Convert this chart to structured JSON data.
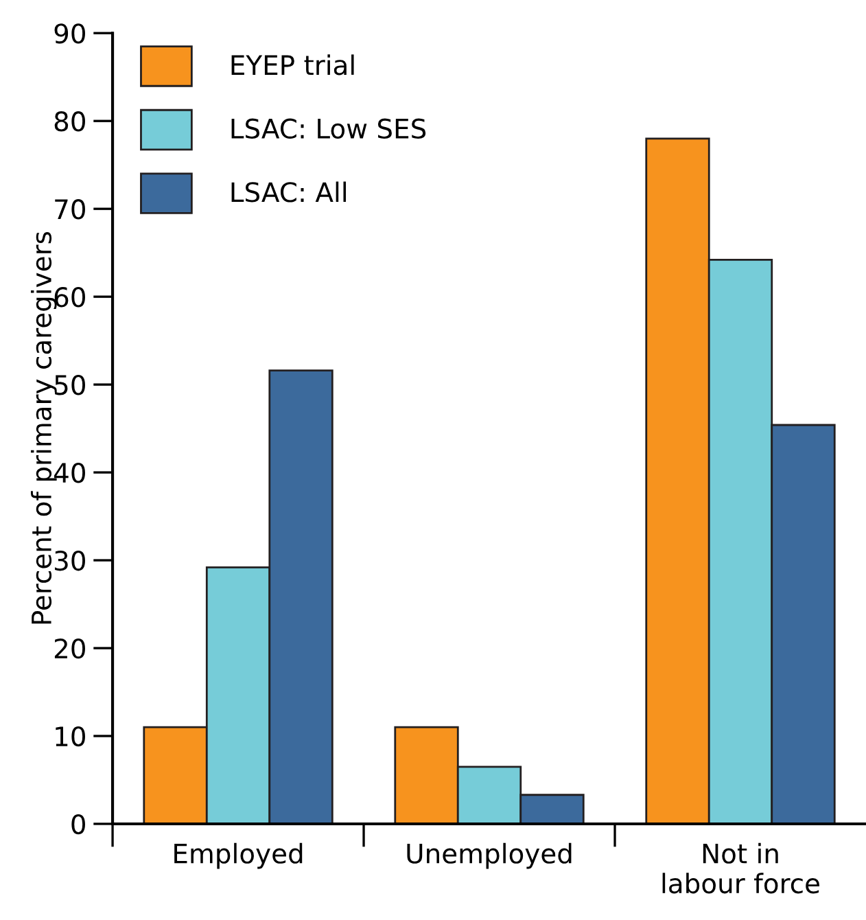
{
  "chart_data": {
    "type": "bar",
    "ylabel": "Percent of primary caregivers",
    "categories": [
      "Employed",
      "Unemployed",
      "Not in\nlabour force"
    ],
    "series": [
      {
        "name": "EYEP trial",
        "color": "#f7931e",
        "values": [
          11,
          11,
          78
        ]
      },
      {
        "name": "LSAC: Low SES",
        "color": "#76ccd8",
        "values": [
          29.2,
          6.5,
          64.2
        ]
      },
      {
        "name": "LSAC: All",
        "color": "#3c6a9c",
        "values": [
          51.6,
          3.3,
          45.4
        ]
      }
    ],
    "ylim": [
      0,
      90
    ],
    "yticks": [
      0,
      10,
      20,
      30,
      40,
      50,
      60,
      70,
      80,
      90
    ],
    "grid": false,
    "legend": "top left"
  }
}
